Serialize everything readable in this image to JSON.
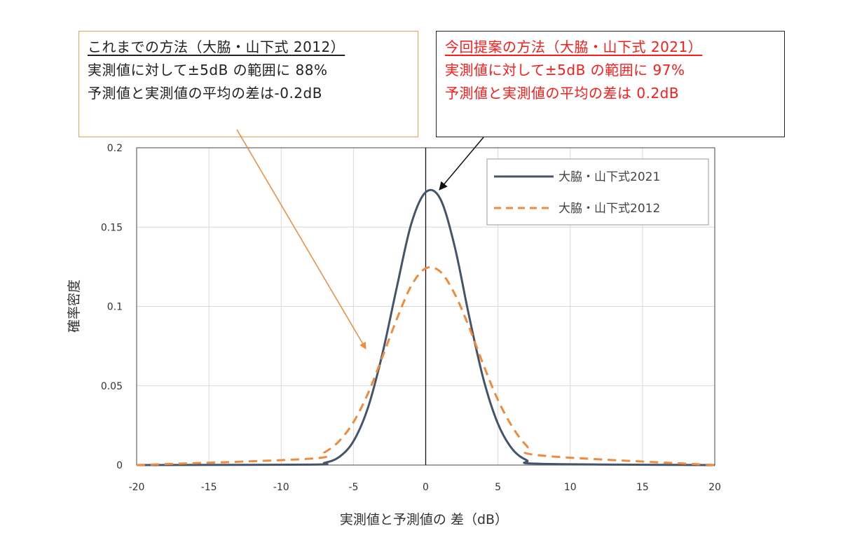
{
  "annotation_prev": {
    "title": "これまでの方法（大脇・山下式 2012）",
    "line1": "実測値に対して±5dB の範囲に 88%",
    "line2": "予測値と実測値の平均の差は-0.2dB"
  },
  "annotation_new": {
    "title": "今回提案の方法（大脇・山下式 2021）",
    "line1": "実測値に対して±5dB の範囲に 97%",
    "line2": "予測値と実測値の平均の差は 0.2dB"
  },
  "colors": {
    "series_2021": "#44546a",
    "series_2012": "#f08a3c",
    "prev_box_border": "#f0a050",
    "new_box_text": "#ff1a1a",
    "grid": "#d9d9d9"
  },
  "chart_data": {
    "type": "line",
    "title": "",
    "xlabel": "実測値と予測値の 差（dB）",
    "ylabel": "確率密度",
    "xlim": [
      -20,
      20
    ],
    "ylim": [
      0,
      0.2
    ],
    "xticks": [
      -20,
      -15,
      -10,
      -5,
      0,
      5,
      10,
      15,
      20
    ],
    "xtick_labels": [
      "-20",
      "-15",
      "-10",
      "-5",
      "0",
      "5",
      "10",
      "15",
      "20"
    ],
    "yticks": [
      0,
      0.05,
      0.1,
      0.15,
      0.2
    ],
    "ytick_labels": [
      "0",
      "0.05",
      "0.1",
      "0.15",
      "0.2"
    ],
    "grid": true,
    "legend_position": "top-right",
    "x": [
      -20,
      -8,
      -7,
      -6,
      -5,
      -4,
      -3,
      -2,
      -1,
      0,
      1,
      2,
      3,
      4,
      5,
      6,
      7,
      8,
      20
    ],
    "series": [
      {
        "name": "大脇・山下式2021",
        "style": "solid",
        "values": [
          0,
          0.0003,
          0.0014,
          0.005,
          0.015,
          0.036,
          0.07,
          0.112,
          0.152,
          0.172,
          0.168,
          0.138,
          0.094,
          0.054,
          0.026,
          0.01,
          0.003,
          0.0008,
          0
        ]
      },
      {
        "name": "大脇・山下式2012",
        "style": "dashed",
        "values": [
          0,
          0.004,
          0.008,
          0.015,
          0.027,
          0.045,
          0.068,
          0.092,
          0.113,
          0.124,
          0.122,
          0.108,
          0.087,
          0.063,
          0.041,
          0.024,
          0.012,
          0.006,
          0
        ]
      }
    ]
  }
}
